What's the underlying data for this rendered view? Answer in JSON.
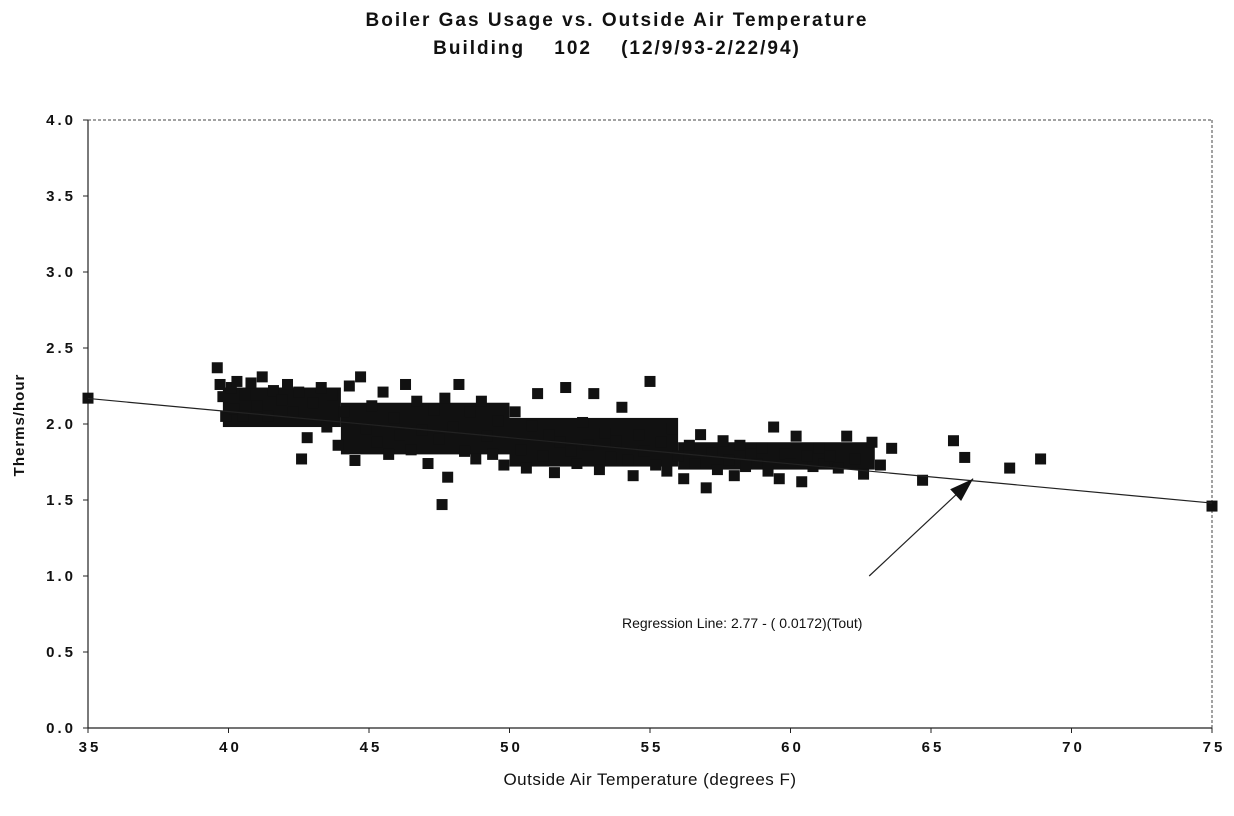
{
  "chart_data": {
    "type": "scatter",
    "title": "Boiler Gas Usage vs. Outside Air Temperature",
    "subtitle": "Building    102    (12/9/93-2/22/94)",
    "xlabel": "Outside Air Temperature (degrees F)",
    "ylabel": "Therms/hour",
    "xlim": [
      35,
      75
    ],
    "ylim": [
      0.0,
      4.0
    ],
    "x_ticks": [
      "35",
      "40",
      "45",
      "50",
      "55",
      "60",
      "65",
      "70",
      "75"
    ],
    "x_tick_values": [
      35,
      40,
      45,
      50,
      55,
      60,
      65,
      70,
      75
    ],
    "y_ticks": [
      "0.0",
      "0.5",
      "1.0",
      "1.5",
      "2.0",
      "2.5",
      "3.0",
      "3.5",
      "4.0"
    ],
    "y_tick_values": [
      0.0,
      0.5,
      1.0,
      1.5,
      2.0,
      2.5,
      3.0,
      3.5,
      4.0
    ],
    "grid": false,
    "legend": "none",
    "marker_color": "#111111",
    "series": [
      {
        "x": [
          35.0,
          39.6,
          39.7,
          39.8,
          39.9,
          40.1,
          40.2,
          40.3,
          40.5,
          40.6,
          40.8,
          41.0,
          41.2,
          41.4,
          41.6,
          41.9,
          42.1,
          42.3,
          42.5,
          42.6,
          42.8,
          43.0,
          43.3,
          43.5,
          43.7,
          43.9,
          44.1,
          44.3,
          44.5,
          44.7,
          44.9,
          45.1,
          45.3,
          45.5,
          45.7,
          45.9,
          46.1,
          46.3,
          46.5,
          46.7,
          46.9,
          47.1,
          47.3,
          47.5,
          47.6,
          47.7,
          47.8,
          48.0,
          48.2,
          48.4,
          48.6,
          48.8,
          49.0,
          49.2,
          49.4,
          49.6,
          49.8,
          50.0,
          50.2,
          50.4,
          50.6,
          50.8,
          51.0,
          51.2,
          51.4,
          51.6,
          51.8,
          52.0,
          52.2,
          52.4,
          52.6,
          52.8,
          53.0,
          53.2,
          53.4,
          53.6,
          53.8,
          54.0,
          54.2,
          54.4,
          54.6,
          54.8,
          55.0,
          55.2,
          55.4,
          55.6,
          55.8,
          56.0,
          56.2,
          56.4,
          56.6,
          56.8,
          57.0,
          57.2,
          57.4,
          57.6,
          57.8,
          58.0,
          58.2,
          58.4,
          58.6,
          58.8,
          59.0,
          59.2,
          59.4,
          59.6,
          59.8,
          60.0,
          60.2,
          60.4,
          60.6,
          60.8,
          61.0,
          61.2,
          61.4,
          61.7,
          62.0,
          62.3,
          62.6,
          62.9,
          63.2,
          63.6,
          64.7,
          65.8,
          66.2,
          67.8,
          68.9,
          75.0
        ],
        "y": [
          2.17,
          2.37,
          2.26,
          2.18,
          2.05,
          2.24,
          2.1,
          2.28,
          2.05,
          2.19,
          2.27,
          2.12,
          2.31,
          2.05,
          2.22,
          2.16,
          2.26,
          2.08,
          2.21,
          1.77,
          1.91,
          2.14,
          2.24,
          1.98,
          2.19,
          1.86,
          2.08,
          2.25,
          1.76,
          2.31,
          1.97,
          2.12,
          1.88,
          2.21,
          1.8,
          2.04,
          1.93,
          2.26,
          1.83,
          2.15,
          1.96,
          1.74,
          2.09,
          1.9,
          1.47,
          2.17,
          1.65,
          1.98,
          2.26,
          1.82,
          2.08,
          1.77,
          2.15,
          1.92,
          1.8,
          2.02,
          1.73,
          1.94,
          2.08,
          1.83,
          1.71,
          1.99,
          2.2,
          1.79,
          1.93,
          1.68,
          1.88,
          2.24,
          1.82,
          1.74,
          2.01,
          1.86,
          2.2,
          1.7,
          1.94,
          1.78,
          1.89,
          2.11,
          1.76,
          1.66,
          1.93,
          1.82,
          2.28,
          1.73,
          1.88,
          1.69,
          1.97,
          1.79,
          1.64,
          1.86,
          1.74,
          1.93,
          1.58,
          1.81,
          1.7,
          1.89,
          1.76,
          1.66,
          1.86,
          1.72,
          1.8,
          1.74,
          1.84,
          1.69,
          1.98,
          1.64,
          1.8,
          1.74,
          1.92,
          1.62,
          1.79,
          1.72,
          1.84,
          1.74,
          1.79,
          1.71,
          1.92,
          1.77,
          1.67,
          1.88,
          1.73,
          1.84,
          1.63,
          1.89,
          1.78,
          1.71,
          1.77,
          1.46
        ],
        "cloud": [
          {
            "x": [
              39.8,
              44.0
            ],
            "y_low": 1.98,
            "y_high": 2.24
          },
          {
            "x": [
              44.0,
              50.0
            ],
            "y_low": 1.8,
            "y_high": 2.14
          },
          {
            "x": [
              50.0,
              56.0
            ],
            "y_low": 1.72,
            "y_high": 2.04
          },
          {
            "x": [
              56.0,
              63.0
            ],
            "y_low": 1.7,
            "y_high": 1.88
          }
        ]
      }
    ],
    "regression": {
      "intercept": 2.77,
      "slope": -0.0172,
      "label": "Regression Line:   2.77 - ( 0.0172)(Tout)",
      "arrow_tip": [
        66.5,
        1.64
      ],
      "arrow_tail": [
        62.8,
        1.0
      ]
    }
  }
}
